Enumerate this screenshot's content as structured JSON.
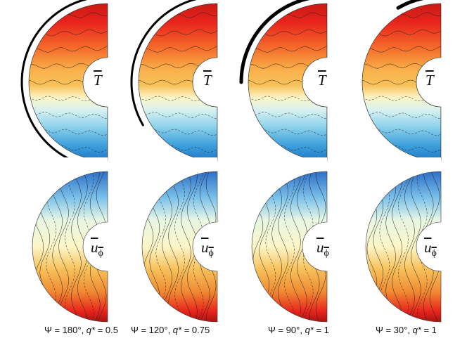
{
  "panels": [
    {
      "psi": "Ψ = 180°, ",
      "q": "q*",
      "qval": " = 0.5",
      "arc_span_deg": 180,
      "arc_width": 3
    },
    {
      "psi": "Ψ = 120°, ",
      "q": "q*",
      "qval": " = 0.75",
      "arc_span_deg": 120,
      "arc_width": 3
    },
    {
      "psi": "Ψ = 90°, ",
      "q": "q*",
      "qval": " = 1",
      "arc_span_deg": 90,
      "arc_width": 5
    },
    {
      "psi": "Ψ = 30°, ",
      "q": "q*",
      "qval": " = 1",
      "arc_span_deg": 30,
      "arc_width": 5
    }
  ],
  "labels": {
    "temperature": "T",
    "velocity_main": "u",
    "velocity_sub": "ϕ"
  },
  "colors": {
    "hot": "#e8241c",
    "warm": "#f7c15a",
    "neutral": "#fdf6c8",
    "cool": "#8fd3ec",
    "cold": "#1f78c8",
    "light_green": "#e6f6e4"
  }
}
